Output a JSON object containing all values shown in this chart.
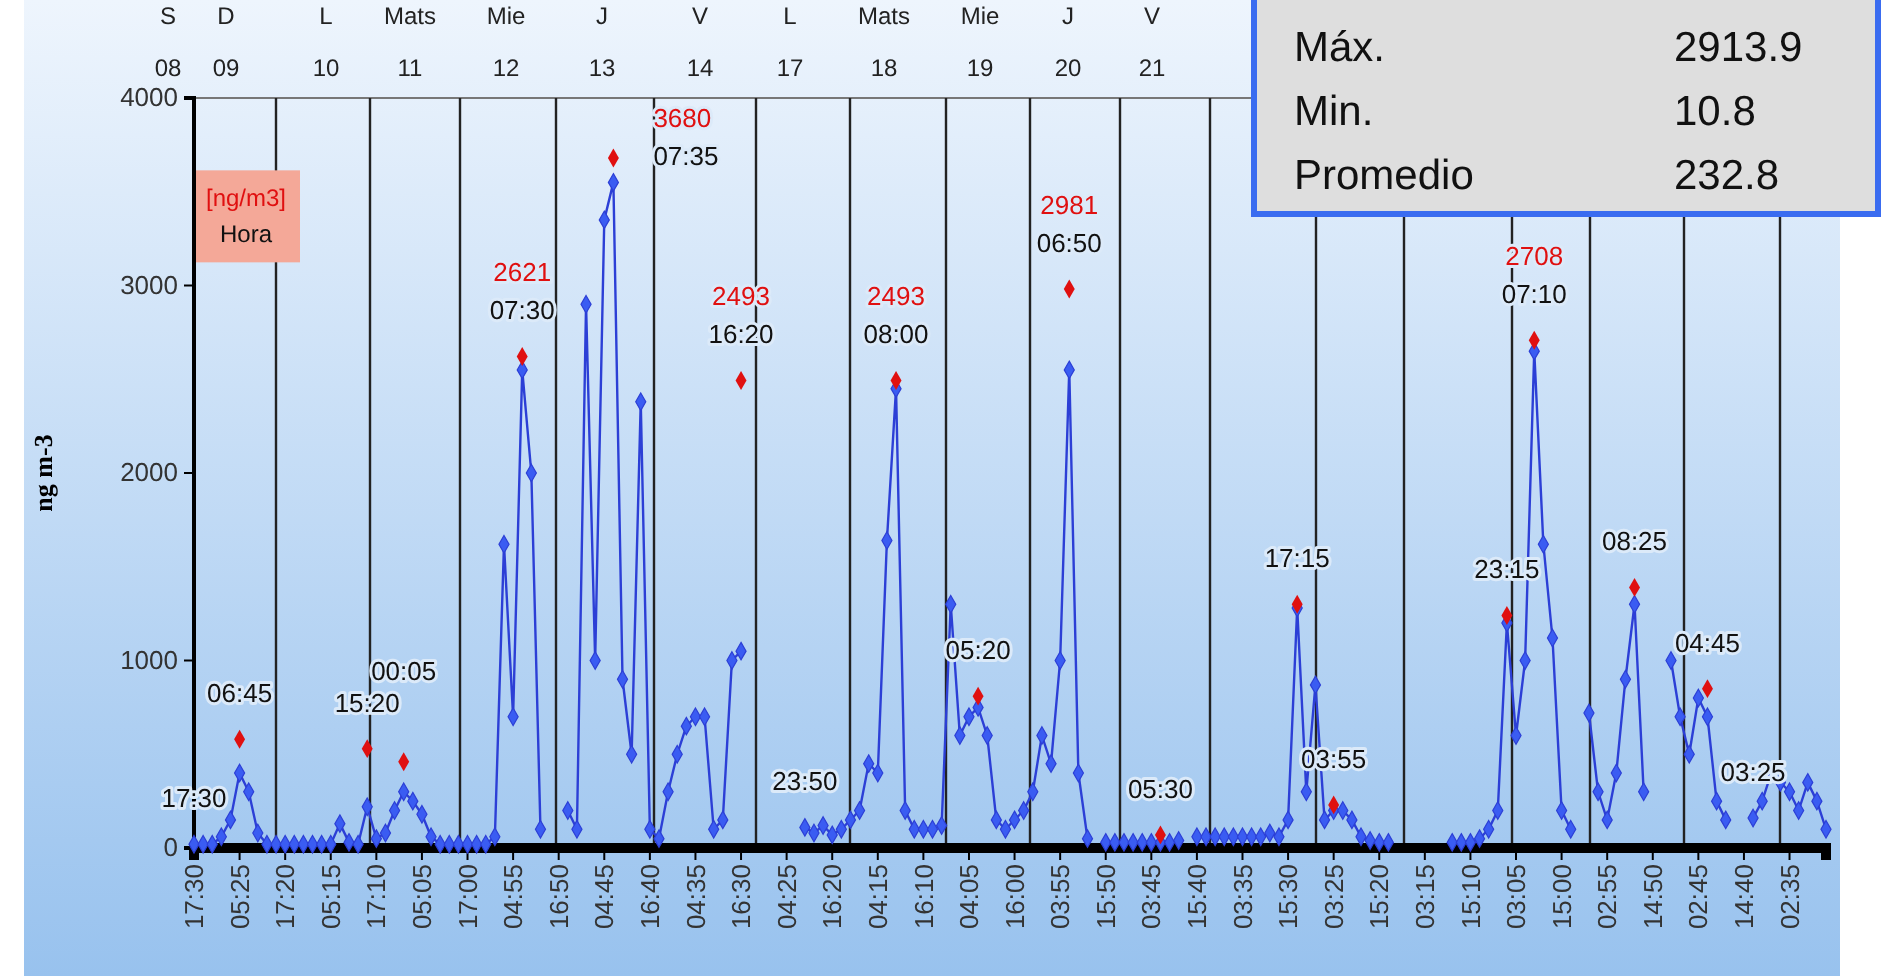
{
  "chart_data": [
    {
      "type": "line",
      "ylabel": "ng m-3",
      "ylim": [
        0,
        4000
      ],
      "yticks": [
        0,
        1000,
        2000,
        3000,
        4000
      ],
      "categories": [
        "17:30",
        null,
        null,
        null,
        null,
        "05:25",
        null,
        null,
        null,
        null,
        "17:20",
        null,
        null,
        null,
        null,
        "05:15",
        null,
        null,
        null,
        null,
        "17:10",
        null,
        null,
        null,
        null,
        "05:05",
        null,
        null,
        null,
        null,
        "17:00",
        null,
        null,
        null,
        null,
        "04:55",
        null,
        null,
        null,
        null,
        "16:50",
        null,
        null,
        null,
        null,
        "04:45",
        null,
        null,
        null,
        null,
        "16:40",
        null,
        null,
        null,
        null,
        "04:35",
        null,
        null,
        null,
        null,
        "16:30",
        null,
        null,
        null,
        null,
        "04:25",
        null,
        null,
        null,
        null,
        "16:20",
        null,
        null,
        null,
        null,
        "04:15",
        null,
        null,
        null,
        null,
        "16:10",
        null,
        null,
        null,
        null,
        "04:05",
        null,
        null,
        null,
        null,
        "16:00",
        null,
        null,
        null,
        null,
        "03:55",
        null,
        null,
        null,
        null,
        "15:50",
        null,
        null,
        null,
        null,
        "03:45",
        null,
        null,
        null,
        null,
        "15:40",
        null,
        null,
        null,
        null,
        "03:35",
        null,
        null,
        null,
        null,
        "15:30",
        null,
        null,
        null,
        null,
        "03:25",
        null,
        null,
        null,
        null,
        "15:20",
        null,
        null,
        null,
        null,
        "03:15",
        null,
        null,
        null,
        null,
        "15:10",
        null,
        null,
        null,
        null,
        "03:05",
        null,
        null,
        null,
        null,
        "15:00",
        null,
        null,
        null,
        null,
        "02:55",
        null,
        null,
        null,
        null,
        "14:50",
        null,
        null,
        null,
        null,
        "02:45",
        null,
        null,
        null,
        null,
        "14:40",
        null,
        null,
        null,
        null,
        "02:35",
        null,
        null,
        null,
        null
      ],
      "grid": false,
      "marker": "diamond",
      "series": [
        {
          "color": "#2c3fd6",
          "values": [
            20,
            20,
            20,
            60,
            150,
            400,
            300,
            80,
            20,
            20,
            20,
            20,
            20,
            20,
            20,
            20,
            130,
            30,
            20,
            220,
            50,
            80,
            200,
            300,
            250,
            180,
            60,
            20,
            20,
            20,
            20,
            20,
            20,
            60,
            1620,
            700,
            2550,
            2000,
            100,
            null,
            null,
            200,
            100,
            2900,
            1000,
            3350,
            3550,
            900,
            500,
            2380,
            100,
            50,
            300,
            500,
            650,
            700,
            700,
            100,
            150,
            1000,
            1050,
            null,
            null,
            null,
            null,
            null,
            null,
            110,
            80,
            120,
            70,
            100,
            150,
            200,
            450,
            400,
            1640,
            2450,
            200,
            100,
            100,
            100,
            120,
            1300,
            600,
            700,
            750,
            600,
            150,
            100,
            150,
            200,
            300,
            600,
            450,
            1000,
            2550,
            400,
            50,
            null,
            30,
            30,
            30,
            30,
            30,
            30,
            30,
            30,
            40,
            null,
            60,
            60,
            60,
            60,
            60,
            60,
            60,
            60,
            80,
            60,
            150,
            1280,
            300,
            870,
            150,
            200,
            200,
            150,
            60,
            40,
            30,
            30,
            null,
            null,
            null,
            null,
            null,
            null,
            30,
            30,
            30,
            50,
            100,
            200,
            1200,
            600,
            1000,
            2650,
            1620,
            1120,
            200,
            100,
            null,
            720,
            300,
            150,
            400,
            900,
            1300,
            300,
            null,
            null,
            1000,
            700,
            500,
            800,
            700,
            250,
            150,
            null,
            null,
            160,
            250,
            400,
            350,
            300,
            200,
            350,
            250,
            100
          ]
        },
        {
          "type": "scatter",
          "color": "#e01010",
          "values": [
            null,
            null,
            null,
            null,
            null,
            580,
            null,
            null,
            null,
            null,
            null,
            null,
            null,
            null,
            null,
            null,
            null,
            null,
            null,
            530,
            null,
            null,
            null,
            460,
            null,
            null,
            null,
            null,
            null,
            null,
            null,
            null,
            null,
            null,
            null,
            null,
            2621,
            null,
            null,
            null,
            null,
            null,
            null,
            null,
            null,
            null,
            3680,
            null,
            null,
            null,
            null,
            null,
            null,
            null,
            null,
            null,
            null,
            null,
            null,
            null,
            2493,
            null,
            null,
            null,
            null,
            null,
            null,
            null,
            null,
            null,
            null,
            null,
            null,
            null,
            null,
            null,
            null,
            2493,
            null,
            null,
            null,
            null,
            null,
            null,
            null,
            null,
            810,
            null,
            null,
            null,
            null,
            null,
            null,
            null,
            null,
            null,
            2981,
            null,
            null,
            null,
            null,
            null,
            null,
            null,
            null,
            null,
            70,
            null,
            null,
            null,
            null,
            null,
            null,
            null,
            null,
            null,
            null,
            null,
            null,
            null,
            null,
            1300,
            null,
            null,
            null,
            230,
            null,
            null,
            null,
            null,
            null,
            null,
            null,
            null,
            null,
            null,
            null,
            null,
            null,
            null,
            null,
            null,
            null,
            null,
            1240,
            null,
            null,
            2708,
            null,
            null,
            null,
            null,
            null,
            null,
            null,
            null,
            null,
            null,
            1390,
            null,
            null,
            null,
            null,
            null,
            null,
            null,
            850,
            null,
            null,
            null,
            null,
            null,
            null,
            null,
            null,
            null,
            null,
            null,
            null,
            null
          ],
          "value_labels": [
            null,
            null,
            null,
            null,
            null,
            null,
            null,
            null,
            null,
            null,
            null,
            null,
            null,
            null,
            null,
            null,
            null,
            null,
            null,
            null,
            null,
            null,
            null,
            null,
            null,
            null,
            null,
            null,
            null,
            null,
            null,
            null,
            null,
            null,
            null,
            null,
            "2621\n07:30",
            null,
            null,
            null,
            null,
            null,
            null,
            null,
            null,
            null,
            "3680\n07:35",
            null,
            null,
            null,
            null,
            null,
            null,
            null,
            null,
            null,
            null,
            null,
            null,
            null,
            "2493\n16:20",
            null,
            null,
            null,
            null,
            null,
            null,
            null,
            null,
            null,
            null,
            null,
            null,
            null,
            null,
            null,
            null,
            "2493\n08:00",
            null,
            null,
            null,
            null,
            null,
            null,
            null,
            null,
            null,
            null,
            null,
            null,
            null,
            null,
            null,
            null,
            null,
            null,
            "2981\n06:50",
            null,
            null,
            null,
            null,
            null,
            null,
            null,
            null,
            null,
            null,
            null,
            null,
            null,
            null,
            null,
            null,
            null,
            null,
            null,
            null,
            null,
            null,
            null,
            null,
            null,
            null,
            null,
            null,
            null,
            null,
            null,
            null,
            null,
            null,
            null,
            null,
            null,
            null,
            null,
            null,
            null,
            null,
            null,
            null,
            null,
            null,
            null,
            null,
            null,
            null,
            "2708\n07:10",
            null,
            null,
            null,
            null,
            null,
            null,
            null,
            null,
            null,
            null,
            null,
            null,
            null,
            null,
            null,
            null,
            null,
            null,
            null,
            null,
            null,
            null,
            null,
            null,
            null,
            null,
            null,
            null,
            null,
            null,
            null,
            null
          ]
        }
      ],
      "annotations": [
        "S\n08",
        "D\n09",
        "L\n10",
        "Mats\n11",
        "Mie\n12",
        "J\n13",
        "V\n14",
        "L\n17",
        "Mats\n18",
        "Mie\n19",
        "J\n20",
        "V\n21",
        "[ng/m3]",
        "Hora",
        {
          "text": "06:45",
          "y": 580
        },
        {
          "text": "15:20",
          "y": 530
        },
        {
          "text": "00:05",
          "y": 460
        },
        {
          "text": "05:20",
          "y": 810
        },
        {
          "text": "05:30",
          "y": 70
        },
        {
          "text": "17:15",
          "y": 1300
        },
        {
          "text": "03:55",
          "y": 230
        },
        {
          "text": "23:15",
          "y": 1240
        },
        {
          "text": "08:25",
          "y": 1390
        },
        {
          "text": "04:45",
          "y": 850
        },
        {
          "text": "17:30",
          "y": 20
        },
        {
          "text": "23:50",
          "y": 110
        },
        {
          "text": "03:25",
          "y": 160
        }
      ]
    },
    {
      "type": "other",
      "annotations": [
        "Máx.",
        "2913.9",
        "Min.",
        "10.8",
        "Promedio",
        "232.8"
      ]
    }
  ]
}
